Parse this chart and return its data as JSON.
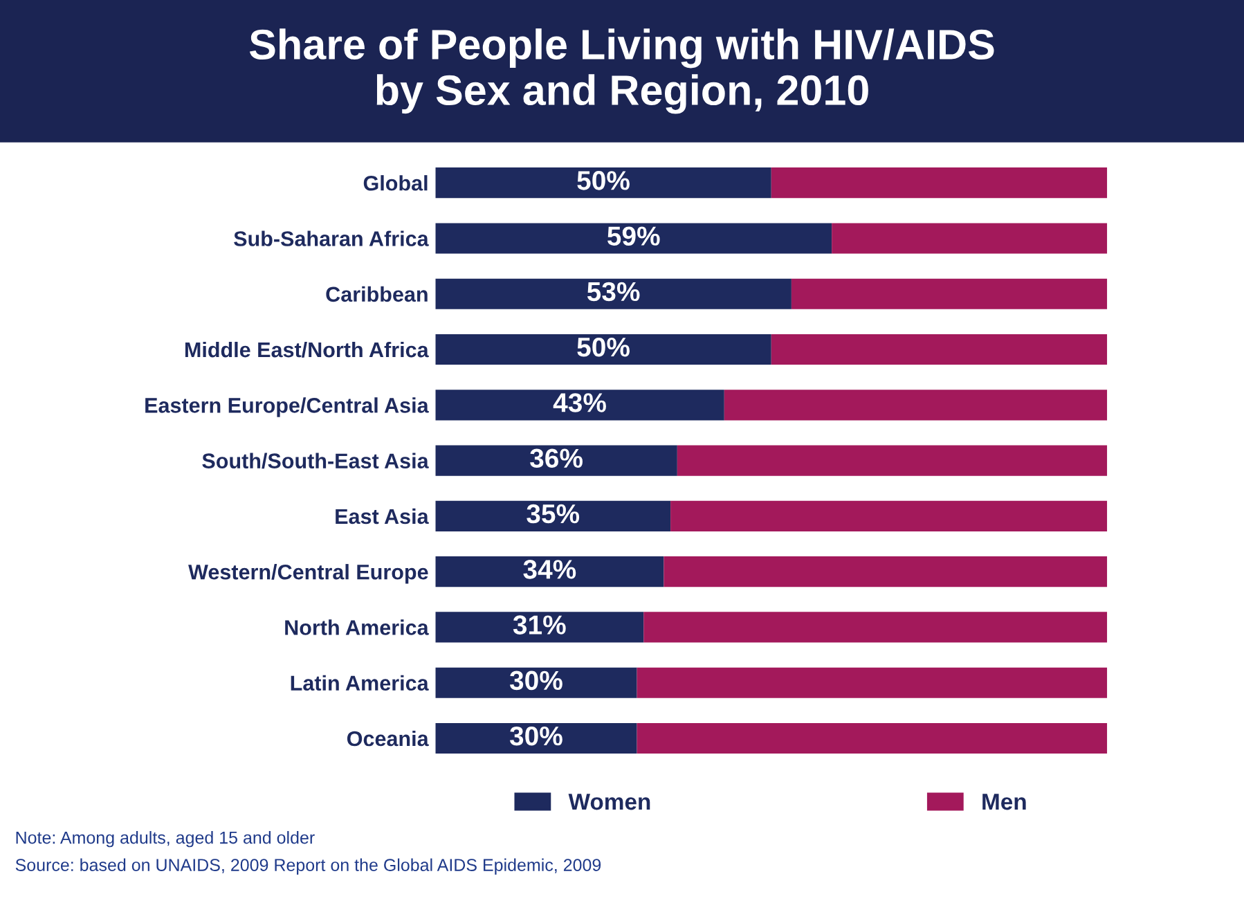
{
  "chart_data": {
    "type": "bar",
    "orientation": "horizontal",
    "stacked": true,
    "title": "Share of People Living with HIV/AIDS\nby Sex and Region, 2010",
    "categories": [
      "Global",
      "Sub-Saharan Africa",
      "Caribbean",
      "Middle East/North Africa",
      "Eastern Europe/Central Asia",
      "South/South-East Asia",
      "East Asia",
      "Western/Central Europe",
      "North America",
      "Latin America",
      "Oceania"
    ],
    "series": [
      {
        "name": "Women",
        "color": "#1e2a5e",
        "values": [
          50,
          59,
          53,
          50,
          43,
          36,
          35,
          34,
          31,
          30,
          30
        ],
        "value_labels": [
          "50%",
          "59%",
          "53%",
          "50%",
          "43%",
          "36%",
          "35%",
          "34%",
          "31%",
          "30%",
          "30%"
        ]
      },
      {
        "name": "Men",
        "color": "#a3195b",
        "values": [
          50,
          41,
          47,
          50,
          57,
          64,
          65,
          66,
          69,
          70,
          70
        ]
      }
    ],
    "legend": "bottom",
    "annotations": [
      "Note: Among adults, aged 15 and older",
      "Source: based on UNAIDS, 2009 Report on the Global AIDS Epidemic, 2009"
    ]
  }
}
